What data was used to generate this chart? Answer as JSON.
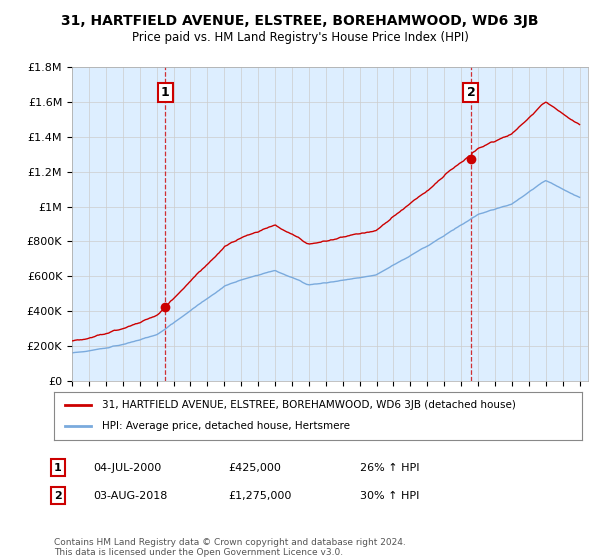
{
  "title": "31, HARTFIELD AVENUE, ELSTREE, BOREHAMWOOD, WD6 3JB",
  "subtitle": "Price paid vs. HM Land Registry's House Price Index (HPI)",
  "ylim": [
    0,
    1800000
  ],
  "yticks": [
    0,
    200000,
    400000,
    600000,
    800000,
    1000000,
    1200000,
    1400000,
    1600000,
    1800000
  ],
  "ytick_labels": [
    "£0",
    "£200K",
    "£400K",
    "£600K",
    "£800K",
    "£1M",
    "£1.2M",
    "£1.4M",
    "£1.6M",
    "£1.8M"
  ],
  "legend_entry1": "31, HARTFIELD AVENUE, ELSTREE, BOREHAMWOOD, WD6 3JB (detached house)",
  "legend_entry2": "HPI: Average price, detached house, Hertsmere",
  "red_line_color": "#cc0000",
  "blue_line_color": "#7aaadd",
  "chart_bg_color": "#ddeeff",
  "marker1_year": 2000.5,
  "marker1_value": 425000,
  "marker1_label": "1",
  "marker1_date": "04-JUL-2000",
  "marker1_price": "£425,000",
  "marker1_hpi": "26% ↑ HPI",
  "marker2_year": 2018.58,
  "marker2_value": 1275000,
  "marker2_label": "2",
  "marker2_date": "03-AUG-2018",
  "marker2_price": "£1,275,000",
  "marker2_hpi": "30% ↑ HPI",
  "vline_color": "#cc0000",
  "footer": "Contains HM Land Registry data © Crown copyright and database right 2024.\nThis data is licensed under the Open Government Licence v3.0.",
  "background_color": "#ffffff",
  "grid_color": "#cccccc"
}
